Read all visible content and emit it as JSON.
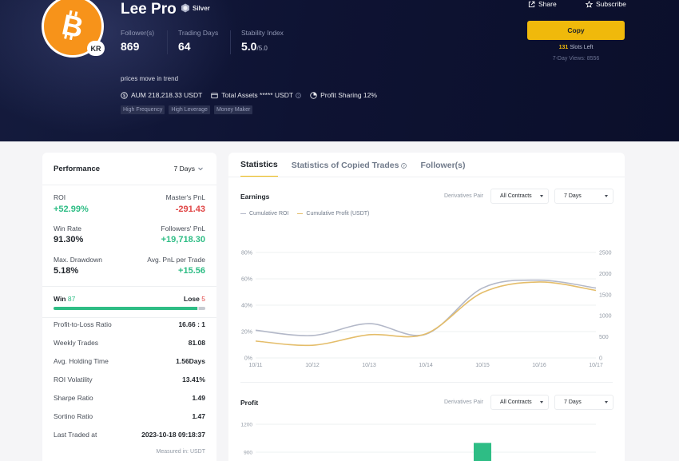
{
  "profile": {
    "name": "Lee Pro",
    "badge": "Silver",
    "country": "KR",
    "description": "prices move in trend",
    "stats": [
      {
        "label": "Follower(s)",
        "value": "869",
        "suffix": ""
      },
      {
        "label": "Trading Days",
        "value": "64",
        "suffix": ""
      },
      {
        "label": "Stability Index",
        "value": "5.0",
        "suffix": "/5.0"
      }
    ],
    "aum": "AUM 218,218.33 USDT",
    "total_assets": "Total Assets ***** USDT",
    "profit_sharing": "Profit Sharing 12%",
    "tags": [
      "High Frequency",
      "High Leverage",
      "Money Maker"
    ]
  },
  "actions": {
    "share": "Share",
    "subscribe": "Subscribe",
    "copy": "Copy",
    "slots_count": "131",
    "slots_text": " Slots Left",
    "views": "7-Day Views: 8556"
  },
  "performance": {
    "title": "Performance",
    "range": "7 Days",
    "roi_label": "ROI",
    "roi_value": "+52.99%",
    "master_pnl_label": "Master's PnL",
    "master_pnl_value": "-291.43",
    "win_rate_label": "Win Rate",
    "win_rate_value": "91.30%",
    "followers_pnl_label": "Followers' PnL",
    "followers_pnl_value": "+19,718.30",
    "max_drawdown_label": "Max. Drawdown",
    "max_drawdown_value": "5.18%",
    "avg_pnl_label": "Avg. PnL per Trade",
    "avg_pnl_value": "+15.56",
    "win_label": "Win",
    "win_count": 87,
    "lose_label": "Lose",
    "lose_count": 5,
    "rows": [
      {
        "label": "Profit-to-Loss Ratio",
        "value": "16.66 : 1"
      },
      {
        "label": "Weekly Trades",
        "value": "81.08"
      },
      {
        "label": "Avg. Holding Time",
        "value": "1.56Days"
      },
      {
        "label": "ROI Volatility",
        "value": "13.41%"
      },
      {
        "label": "Sharpe Ratio",
        "value": "1.49"
      },
      {
        "label": "Sortino Ratio",
        "value": "1.47"
      },
      {
        "label": "Last Traded at",
        "value": "2023-10-18 09:18:37"
      }
    ],
    "measured_in": "Measured in: USDT"
  },
  "tabs": [
    {
      "label": "Statistics",
      "active": true
    },
    {
      "label": "Statistics of Copied Trades",
      "active": false
    },
    {
      "label": "Follower(s)",
      "active": false
    }
  ],
  "earnings": {
    "title": "Earnings",
    "pair_label": "Derivatives Pair",
    "contracts": "All Contracts",
    "range": "7 Days"
  },
  "profit": {
    "title": "Profit",
    "pair_label": "Derivatives Pair",
    "contracts": "All Contracts",
    "range": "7 Days"
  },
  "colors": {
    "accent": "#f0b90b",
    "roi_line": "#b3b8c8",
    "profit_line": "#e4bd6a",
    "positive": "#2ebd85",
    "negative": "#e04545"
  },
  "chart_data": [
    {
      "type": "line",
      "x": [
        "10/11",
        "10/12",
        "10/13",
        "10/14",
        "10/15",
        "10/16",
        "10/17"
      ],
      "series": [
        {
          "name": "Cumulative ROI",
          "axis": "left",
          "values": [
            21,
            17,
            26,
            18,
            53,
            59,
            53
          ]
        },
        {
          "name": "Cumulative Profit (USDT)",
          "axis": "right",
          "values": [
            400,
            300,
            550,
            570,
            1550,
            1800,
            1600
          ]
        }
      ],
      "y_left_ticks": [
        "0%",
        "20%",
        "40%",
        "60%",
        "80%"
      ],
      "y_left_range": [
        0,
        80
      ],
      "y_right_ticks": [
        "0",
        "500",
        "1000",
        "1500",
        "2000",
        "2500"
      ],
      "y_right_range": [
        0,
        2500
      ],
      "grid": true,
      "legend_position": "top-left"
    },
    {
      "type": "bar",
      "y_ticks": [
        "1200",
        "900"
      ],
      "categories": [
        "10/11",
        "10/12",
        "10/13",
        "10/14",
        "10/15",
        "10/16",
        "10/17"
      ],
      "values": [
        null,
        null,
        null,
        null,
        1000,
        null,
        null
      ]
    }
  ]
}
